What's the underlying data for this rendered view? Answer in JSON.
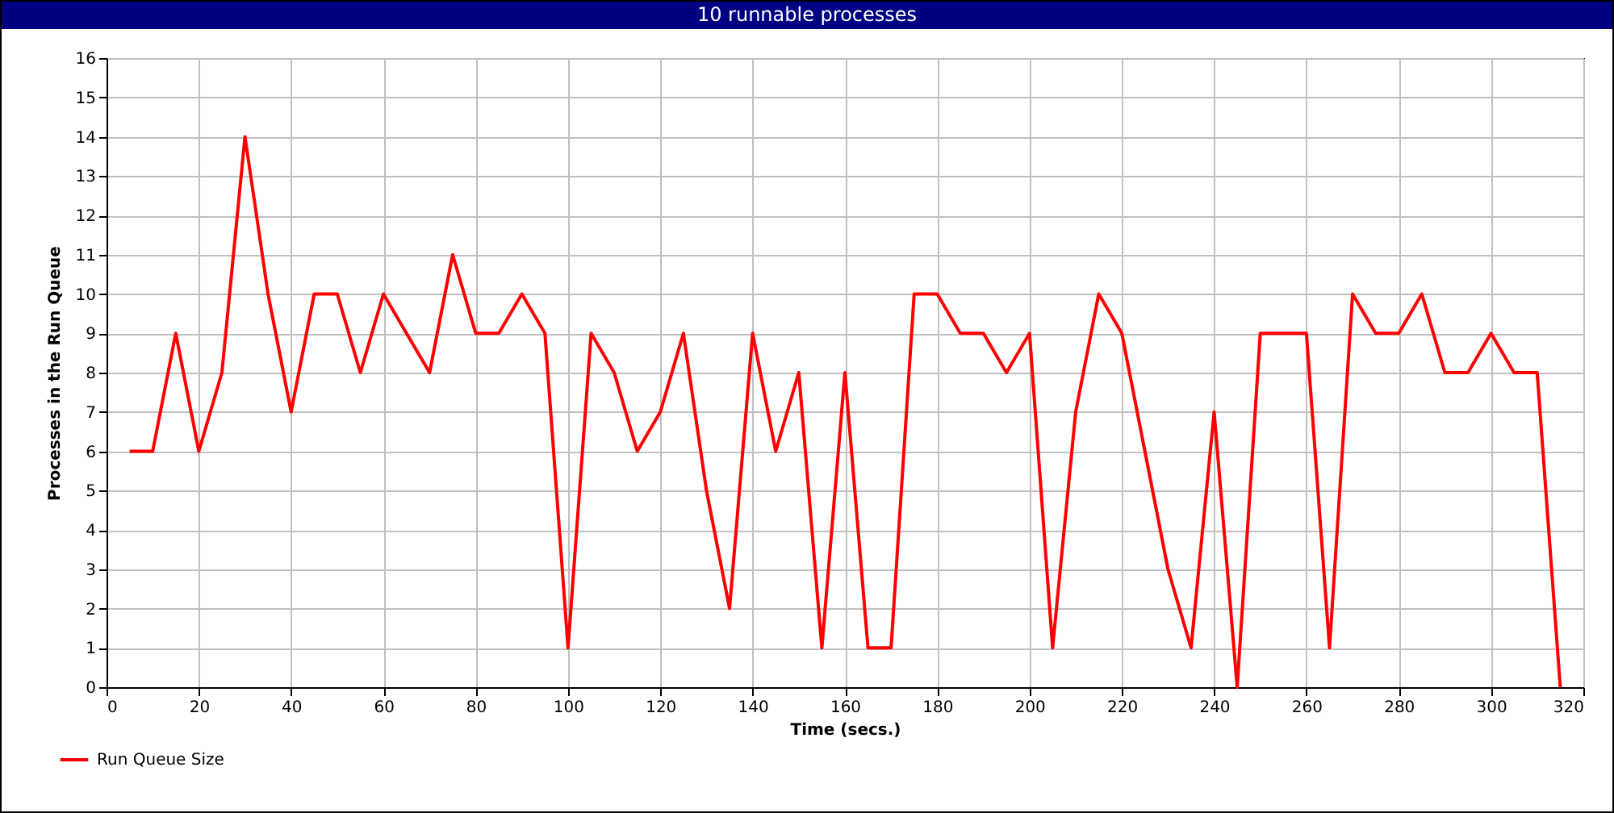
{
  "chart_data": {
    "type": "line",
    "title": "10 runnable processes",
    "xlabel": "Time (secs.)",
    "ylabel": "Processes in the Run Queue",
    "x": [
      5,
      10,
      15,
      20,
      25,
      30,
      35,
      40,
      45,
      50,
      55,
      60,
      65,
      70,
      75,
      80,
      85,
      90,
      95,
      100,
      105,
      110,
      115,
      120,
      125,
      130,
      135,
      140,
      145,
      150,
      155,
      160,
      165,
      170,
      175,
      180,
      185,
      190,
      195,
      200,
      205,
      210,
      215,
      220,
      225,
      230,
      235,
      240,
      245,
      250,
      255,
      260,
      265,
      270,
      275,
      280,
      285,
      290,
      295,
      300,
      305,
      310,
      315
    ],
    "series": [
      {
        "name": "Run Queue Size",
        "color": "#ff0000",
        "values": [
          6,
          6,
          9,
          6,
          8,
          14,
          10,
          7,
          10,
          10,
          8,
          10,
          9,
          8,
          11,
          9,
          9,
          10,
          9,
          1,
          9,
          8,
          6,
          7,
          9,
          5,
          2,
          9,
          6,
          8,
          1,
          8,
          1,
          1,
          10,
          10,
          9,
          9,
          8,
          9,
          1,
          7,
          10,
          9,
          6,
          3,
          1,
          7,
          0,
          9,
          9,
          9,
          1,
          10,
          9,
          9,
          10,
          8,
          8,
          9,
          8,
          8,
          0
        ]
      }
    ],
    "xlim": [
      0,
      320
    ],
    "xticks": [
      0,
      20,
      40,
      60,
      80,
      100,
      120,
      140,
      160,
      180,
      200,
      220,
      240,
      260,
      280,
      300,
      320
    ],
    "ylim": [
      0,
      16
    ],
    "yticks": [
      0,
      1,
      2,
      3,
      4,
      5,
      6,
      7,
      8,
      9,
      10,
      11,
      12,
      13,
      14,
      15,
      16
    ],
    "grid": true,
    "legend": "bottom left",
    "marker": "none",
    "line_style": "solid"
  }
}
